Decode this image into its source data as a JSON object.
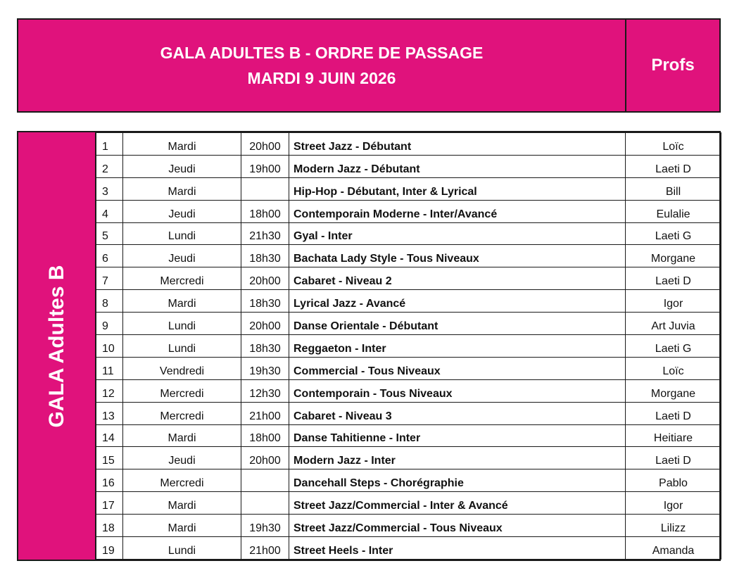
{
  "header": {
    "title_line1": "GALA ADULTES B - ORDRE DE PASSAGE",
    "title_line2": "MARDI 9 JUIN 2026",
    "profs_label": "Profs"
  },
  "side_label": "GALA Adultes B",
  "colors": {
    "accent": "#e0127c",
    "text_on_accent": "#ffffff",
    "border": "#1a1a1a"
  },
  "rows": [
    {
      "num": "1",
      "day": "Mardi",
      "time": "20h00",
      "course": "Street Jazz - Débutant",
      "prof": "Loïc"
    },
    {
      "num": "2",
      "day": "Jeudi",
      "time": "19h00",
      "course": "Modern Jazz - Débutant",
      "prof": "Laeti D"
    },
    {
      "num": "3",
      "day": "Mardi",
      "time": "",
      "course": "Hip-Hop - Débutant, Inter & Lyrical",
      "prof": "Bill"
    },
    {
      "num": "4",
      "day": "Jeudi",
      "time": "18h00",
      "course": "Contemporain Moderne - Inter/Avancé",
      "prof": "Eulalie"
    },
    {
      "num": "5",
      "day": "Lundi",
      "time": "21h30",
      "course": "Gyal - Inter",
      "prof": "Laeti G"
    },
    {
      "num": "6",
      "day": "Jeudi",
      "time": "18h30",
      "course": "Bachata Lady Style - Tous Niveaux",
      "prof": "Morgane"
    },
    {
      "num": "7",
      "day": "Mercredi",
      "time": "20h00",
      "course": "Cabaret -  Niveau 2",
      "prof": "Laeti D"
    },
    {
      "num": "8",
      "day": "Mardi",
      "time": "18h30",
      "course": "Lyrical Jazz - Avancé",
      "prof": "Igor"
    },
    {
      "num": "9",
      "day": "Lundi",
      "time": "20h00",
      "course": "Danse Orientale  - Débutant",
      "prof": "Art Juvia"
    },
    {
      "num": "10",
      "day": "Lundi",
      "time": "18h30",
      "course": "Reggaeton - Inter",
      "prof": "Laeti G"
    },
    {
      "num": "11",
      "day": "Vendredi",
      "time": "19h30",
      "course": "Commercial - Tous Niveaux",
      "prof": "Loïc"
    },
    {
      "num": "12",
      "day": "Mercredi",
      "time": "12h30",
      "course": "Contemporain - Tous Niveaux",
      "prof": "Morgane"
    },
    {
      "num": "13",
      "day": "Mercredi",
      "time": "21h00",
      "course": "Cabaret - Niveau 3",
      "prof": "Laeti D"
    },
    {
      "num": "14",
      "day": "Mardi",
      "time": "18h00",
      "course": "Danse Tahitienne - Inter",
      "prof": "Heitiare"
    },
    {
      "num": "15",
      "day": "Jeudi",
      "time": "20h00",
      "course": "Modern Jazz - Inter",
      "prof": "Laeti D"
    },
    {
      "num": "16",
      "day": "Mercredi",
      "time": "",
      "course": "Dancehall Steps - Chorégraphie",
      "prof": "Pablo"
    },
    {
      "num": "17",
      "day": "Mardi",
      "time": "",
      "course": "Street Jazz/Commercial - Inter & Avancé",
      "prof": "Igor"
    },
    {
      "num": "18",
      "day": "Mardi",
      "time": "19h30",
      "course": "Street Jazz/Commercial - Tous Niveaux",
      "prof": "Lilizz"
    },
    {
      "num": "19",
      "day": "Lundi",
      "time": "21h00",
      "course": "Street Heels - Inter",
      "prof": "Amanda"
    }
  ]
}
